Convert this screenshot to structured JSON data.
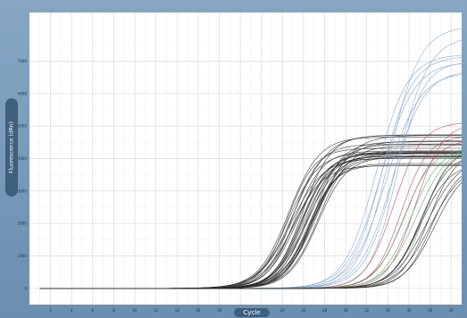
{
  "chart_data": {
    "type": "line",
    "title": "",
    "xlabel": "Cycle",
    "ylabel": "Fluorescence (dRn)",
    "xlim": [
      0,
      41
    ],
    "ylim": [
      -500,
      8500
    ],
    "x_ticks": [
      2,
      4,
      6,
      8,
      10,
      12,
      14,
      16,
      18,
      20,
      22,
      24,
      26,
      28,
      30,
      32,
      34,
      36,
      38,
      40
    ],
    "y_ticks": [
      0,
      1000,
      2000,
      3000,
      4000,
      5000,
      6000,
      7000
    ],
    "grid": true,
    "legend": "none",
    "colors": {
      "black": "#2b2b2b",
      "blue": "#7ea2c9",
      "red": "#b0424d",
      "green": "#5e9a68",
      "plot_background": "#ffffff",
      "frame": "#6f93b4"
    },
    "groups": [
      {
        "color": "black",
        "count": 28,
        "ct_range": [
          24.5,
          27.5
        ],
        "plateau_range": [
          3700,
          4800
        ]
      },
      {
        "color": "blue",
        "count": 8,
        "ct_range": [
          33.0,
          35.0
        ],
        "plateau_range": [
          6500,
          8300
        ]
      },
      {
        "color": "red",
        "count": 4,
        "ct_range": [
          34.5,
          36.5
        ],
        "plateau_range": [
          4600,
          5200
        ]
      },
      {
        "color": "green",
        "count": 4,
        "ct_range": [
          35.5,
          37.5
        ],
        "plateau_range": [
          4300,
          4900
        ]
      },
      {
        "color": "black",
        "count": 8,
        "ct_range": [
          37.0,
          38.5
        ],
        "plateau_range": [
          3800,
          4600
        ]
      }
    ]
  }
}
